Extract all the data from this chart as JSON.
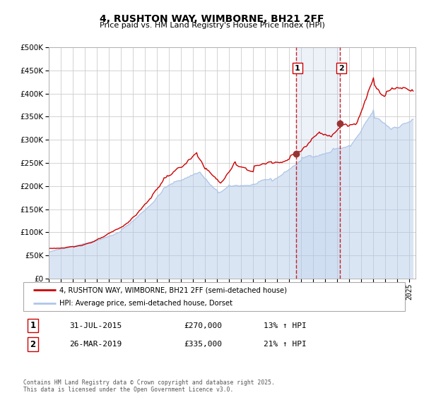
{
  "title": "4, RUSHTON WAY, WIMBORNE, BH21 2FF",
  "subtitle": "Price paid vs. HM Land Registry's House Price Index (HPI)",
  "legend_line1": "4, RUSHTON WAY, WIMBORNE, BH21 2FF (semi-detached house)",
  "legend_line2": "HPI: Average price, semi-detached house, Dorset",
  "event1_date": "31-JUL-2015",
  "event1_price": 270000,
  "event1_hpi": "13% ↑ HPI",
  "event1_x": 2015.58,
  "event2_date": "26-MAR-2019",
  "event2_price": 335000,
  "event2_hpi": "21% ↑ HPI",
  "event2_x": 2019.23,
  "hpi_color": "#aec6e8",
  "price_color": "#cc0000",
  "marker_color": "#993333",
  "background_color": "#ffffff",
  "grid_color": "#cccccc",
  "footer": "Contains HM Land Registry data © Crown copyright and database right 2025.\nThis data is licensed under the Open Government Licence v3.0.",
  "xmin": 1995,
  "xmax": 2025.5,
  "ymin": 0,
  "ymax": 500000
}
